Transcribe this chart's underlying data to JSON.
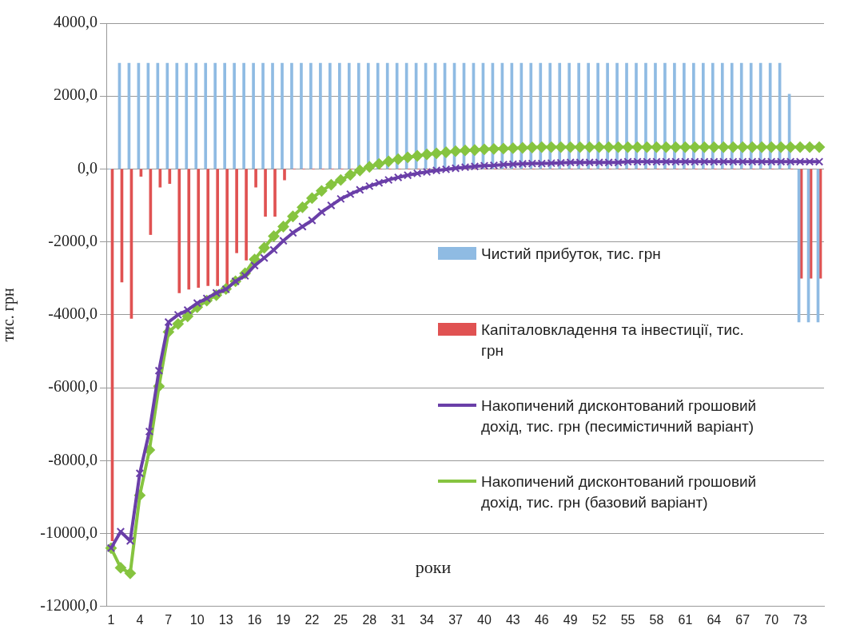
{
  "chart_data": {
    "type": "bar",
    "xlabel": "роки",
    "ylabel": "тис. грн",
    "categories": [
      "1",
      null,
      null,
      "4",
      null,
      null,
      "7",
      null,
      null,
      "10",
      null,
      null,
      "13",
      null,
      null,
      "16",
      null,
      null,
      "19",
      null,
      null,
      "22",
      null,
      null,
      "25",
      null,
      null,
      "28",
      null,
      null,
      "31",
      null,
      null,
      "34",
      null,
      null,
      "37",
      null,
      null,
      "40",
      null,
      null,
      "43",
      null,
      null,
      "46",
      null,
      null,
      "49",
      null,
      null,
      "52",
      null,
      null,
      "55",
      null,
      null,
      "58",
      null,
      null,
      "61",
      null,
      null,
      "64",
      null,
      null,
      "67",
      null,
      null,
      "70",
      null,
      null,
      "73",
      null,
      null
    ],
    "series": [
      {
        "name": "Чистий прибуток, тис. грн",
        "color": "#8fbbe3",
        "values": [
          0,
          2900,
          2900,
          2900,
          2900,
          2900,
          2900,
          2900,
          2900,
          2900,
          2900,
          2900,
          2900,
          2900,
          2900,
          2900,
          2900,
          2900,
          2900,
          2900,
          2900,
          2900,
          2900,
          2900,
          2900,
          2900,
          2900,
          2900,
          2900,
          2900,
          2900,
          2900,
          2900,
          2900,
          2900,
          2900,
          2900,
          2900,
          2900,
          2900,
          2900,
          2900,
          2900,
          2900,
          2900,
          2900,
          2900,
          2900,
          2900,
          2900,
          2900,
          2900,
          2900,
          2900,
          2900,
          2900,
          2900,
          2900,
          2900,
          2900,
          2900,
          2900,
          2900,
          2900,
          2900,
          2900,
          2900,
          2900,
          2900,
          2900,
          2900,
          2050,
          -4200,
          -4200,
          -4200
        ]
      },
      {
        "name": "Капіталовкладення та інвестиції, тис. грн",
        "color": "#e05252",
        "values": [
          -10200,
          -3100,
          -4100,
          -200,
          -1800,
          -500,
          -400,
          -3400,
          -3300,
          -3250,
          -3200,
          -3200,
          -3200,
          -2300,
          -2500,
          -500,
          -1300,
          -1300,
          -300,
          0,
          0,
          0,
          0,
          0,
          0,
          0,
          0,
          0,
          0,
          0,
          0,
          0,
          0,
          0,
          0,
          0,
          0,
          0,
          0,
          0,
          0,
          0,
          0,
          0,
          0,
          0,
          0,
          0,
          0,
          0,
          0,
          0,
          0,
          0,
          0,
          0,
          0,
          0,
          0,
          0,
          0,
          0,
          0,
          0,
          0,
          0,
          0,
          0,
          0,
          0,
          0,
          0,
          -3000,
          -3000,
          -3000
        ]
      },
      {
        "name": "Накопичений дисконтований грошовий дохід, тис. грн (песимістичний варіант)",
        "type": "line",
        "marker": "cross",
        "color": "#6a3fa8",
        "values": [
          -10400,
          -9950,
          -10200,
          -8350,
          -7200,
          -5530,
          -4200,
          -4000,
          -3870,
          -3680,
          -3550,
          -3400,
          -3300,
          -3080,
          -2930,
          -2650,
          -2440,
          -2220,
          -1970,
          -1750,
          -1580,
          -1410,
          -1180,
          -1000,
          -820,
          -690,
          -570,
          -470,
          -380,
          -300,
          -230,
          -170,
          -120,
          -80,
          -40,
          -10,
          20,
          50,
          70,
          90,
          100,
          120,
          130,
          140,
          150,
          150,
          160,
          170,
          180,
          180,
          180,
          180,
          180,
          180,
          200,
          200,
          200,
          200,
          200,
          200,
          200,
          200,
          200,
          200,
          200,
          200,
          200,
          200,
          200,
          200,
          200,
          200,
          200,
          200,
          200
        ]
      },
      {
        "name": "Накопичений дисконтований грошовий дохід, тис. грн  (базовий варіант)",
        "type": "line",
        "marker": "diamond",
        "color": "#86c440",
        "values": [
          -10400,
          -10940,
          -11090,
          -8950,
          -7710,
          -5960,
          -4470,
          -4250,
          -4040,
          -3790,
          -3610,
          -3460,
          -3290,
          -3080,
          -2860,
          -2480,
          -2160,
          -1840,
          -1580,
          -1300,
          -1050,
          -800,
          -600,
          -430,
          -300,
          -160,
          -40,
          60,
          140,
          210,
          270,
          320,
          360,
          400,
          430,
          460,
          490,
          510,
          520,
          540,
          550,
          560,
          570,
          580,
          590,
          600,
          600,
          600,
          600,
          600,
          600,
          600,
          600,
          600,
          600,
          600,
          600,
          600,
          600,
          600,
          600,
          600,
          600,
          600,
          600,
          600,
          600,
          600,
          600,
          600,
          600,
          600,
          600,
          600,
          600
        ]
      }
    ],
    "ylim": [
      -12000,
      4000
    ],
    "yticks": [
      {
        "value": -12000,
        "label": "-12000,0"
      },
      {
        "value": -10000,
        "label": "-10000,0"
      },
      {
        "value": -8000,
        "label": "-8000,0"
      },
      {
        "value": -6000,
        "label": "-6000,0"
      },
      {
        "value": -4000,
        "label": "-4000,0"
      },
      {
        "value": -2000,
        "label": "-2000,0"
      },
      {
        "value": 0,
        "label": "0,0"
      },
      {
        "value": 2000,
        "label": "2000,0"
      },
      {
        "value": 4000,
        "label": "4000,0"
      }
    ],
    "grid": "y",
    "legend": "right"
  }
}
